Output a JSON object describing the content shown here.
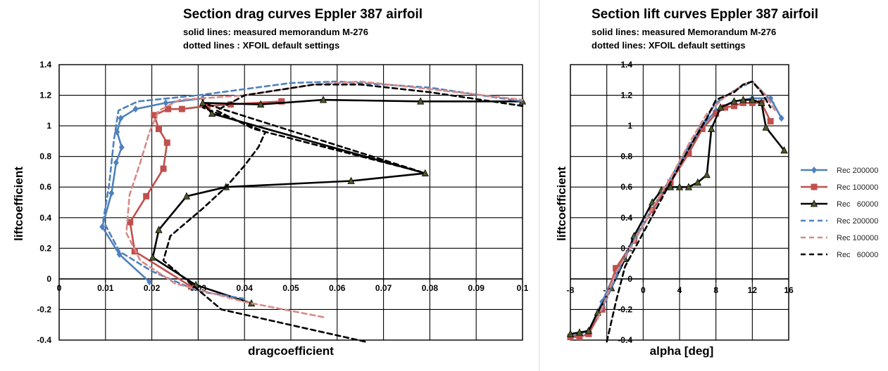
{
  "chart_data": [
    {
      "type": "line",
      "title": "Section drag curves Eppler 387 airfoil",
      "subtitle_lines": [
        "solid lines: measured memorandum M-276",
        "dotted lines : XFOIL default settings"
      ],
      "xlabel": "dragcoefficient",
      "ylabel": "liftcoefficient",
      "xlim": [
        0,
        0.1
      ],
      "ylim": [
        -0.4,
        1.4
      ],
      "xticks": [
        "0",
        "0.01",
        "0.02",
        "0.03",
        "0.04",
        "0.05",
        "0.06",
        "0.07",
        "0.08",
        "0.09",
        "0.1"
      ],
      "yticks": [
        "-0.4",
        "-0.2",
        "0",
        "0.2",
        "0.4",
        "0.6",
        "0.8",
        "1",
        "1.2",
        "1.4"
      ],
      "grid": true,
      "series": [
        {
          "name": "Rec 200000",
          "style": "solid",
          "color": "#4f81bd",
          "marker": "diamond",
          "points": [
            [
              0.0195,
              -0.02
            ],
            [
              0.013,
              0.16
            ],
            [
              0.0093,
              0.34
            ],
            [
              0.0113,
              0.56
            ],
            [
              0.0123,
              0.76
            ],
            [
              0.0135,
              0.86
            ],
            [
              0.0125,
              0.96
            ],
            [
              0.0133,
              1.05
            ],
            [
              0.0165,
              1.11
            ],
            [
              0.023,
              1.15
            ],
            [
              0.031,
              1.18
            ]
          ]
        },
        {
          "name": "Rec 100000",
          "style": "solid",
          "color": "#c0504d",
          "marker": "square",
          "points": [
            [
              0.0285,
              -0.05
            ],
            [
              0.0163,
              0.18
            ],
            [
              0.0153,
              0.37
            ],
            [
              0.0188,
              0.54
            ],
            [
              0.0225,
              0.72
            ],
            [
              0.0233,
              0.89
            ],
            [
              0.0215,
              0.98
            ],
            [
              0.0205,
              1.07
            ],
            [
              0.0235,
              1.11
            ],
            [
              0.0265,
              1.11
            ],
            [
              0.032,
              1.13
            ],
            [
              0.037,
              1.14
            ],
            [
              0.048,
              1.16
            ]
          ]
        },
        {
          "name": "Rec   60000",
          "style": "solid",
          "color": "#000000",
          "marker": "triangle",
          "points": [
            [
              0.0415,
              -0.16
            ],
            [
              0.0295,
              -0.04
            ],
            [
              0.0202,
              0.14
            ],
            [
              0.0215,
              0.32
            ],
            [
              0.0275,
              0.54
            ],
            [
              0.036,
              0.6
            ],
            [
              0.063,
              0.64
            ],
            [
              0.079,
              0.69
            ],
            [
              0.033,
              1.08
            ],
            [
              0.031,
              1.15
            ],
            [
              0.0435,
              1.14
            ],
            [
              0.057,
              1.17
            ],
            [
              0.078,
              1.16
            ],
            [
              0.1,
              1.16
            ]
          ]
        },
        {
          "name": "Rec 200000",
          "style": "dashed",
          "color": "#4f81bd",
          "marker": "none",
          "points": [
            [
              0.04,
              -0.13
            ],
            [
              0.03,
              -0.08
            ],
            [
              0.02,
              0.05
            ],
            [
              0.013,
              0.18
            ],
            [
              0.0095,
              0.38
            ],
            [
              0.0108,
              0.62
            ],
            [
              0.0118,
              0.9
            ],
            [
              0.0128,
              1.1
            ],
            [
              0.017,
              1.16
            ],
            [
              0.03,
              1.2
            ],
            [
              0.05,
              1.28
            ],
            [
              0.06,
              1.29
            ],
            [
              0.08,
              1.25
            ],
            [
              0.1,
              1.16
            ]
          ]
        },
        {
          "name": "Rec 100000",
          "style": "dashed",
          "color": "#d98986",
          "marker": "none",
          "points": [
            [
              0.057,
              -0.25
            ],
            [
              0.04,
              -0.15
            ],
            [
              0.025,
              -0.03
            ],
            [
              0.0175,
              0.12
            ],
            [
              0.0145,
              0.3
            ],
            [
              0.0152,
              0.55
            ],
            [
              0.0175,
              0.76
            ],
            [
              0.0195,
              0.96
            ],
            [
              0.0215,
              1.1
            ],
            [
              0.026,
              1.17
            ],
            [
              0.04,
              1.2
            ],
            [
              0.055,
              1.27
            ],
            [
              0.065,
              1.29
            ],
            [
              0.08,
              1.24
            ],
            [
              0.1,
              1.17
            ]
          ]
        },
        {
          "name": "Rec   60000",
          "style": "dashed",
          "color": "#000000",
          "marker": "none",
          "points": [
            [
              0.066,
              -0.41
            ],
            [
              0.035,
              -0.2
            ],
            [
              0.0225,
              0.12
            ],
            [
              0.024,
              0.28
            ],
            [
              0.031,
              0.46
            ],
            [
              0.036,
              0.6
            ],
            [
              0.04,
              0.74
            ],
            [
              0.043,
              0.86
            ],
            [
              0.0445,
              0.96
            ],
            [
              0.031,
              1.12
            ],
            [
              0.032,
              1.14
            ],
            [
              0.078,
              0.7
            ],
            [
              0.042,
              0.98
            ],
            [
              0.034,
              1.1
            ],
            [
              0.04,
              1.2
            ],
            [
              0.055,
              1.27
            ],
            [
              0.065,
              1.27
            ],
            [
              0.08,
              1.22
            ],
            [
              0.1,
              1.13
            ]
          ]
        }
      ]
    },
    {
      "type": "line",
      "title": "Section lift curves Eppler 387 airfoil",
      "subtitle_lines": [
        "solid lines: measured Memorandum M-276",
        "dotted lines: XFOIL default settings"
      ],
      "xlabel": "alpha  [deg]",
      "ylabel": "liftcoefficient",
      "xlim": [
        -8,
        16
      ],
      "ylim": [
        -0.4,
        1.4
      ],
      "xticks": [
        "-8",
        "-4",
        "0",
        "4",
        "8",
        "12",
        "16"
      ],
      "yticks": [
        "-0.4",
        "-0.2",
        "0",
        "0.2",
        "0.4",
        "0.6",
        "0.8",
        "1",
        "1.2",
        "1.4"
      ],
      "grid": true,
      "legend": {
        "position": "right",
        "entries": [
          "Rec 200000",
          "Rec 100000",
          "Rec   60000",
          "Rec 200000",
          "Rec 100000",
          "Rec   60000"
        ]
      },
      "series": [
        {
          "name": "Rec 200000",
          "style": "solid",
          "color": "#4f81bd",
          "marker": "diamond",
          "points": [
            [
              -8,
              -0.38
            ],
            [
              -6,
              -0.34
            ],
            [
              -4.5,
              -0.15
            ],
            [
              -3,
              0.05
            ],
            [
              -1,
              0.25
            ],
            [
              1,
              0.45
            ],
            [
              3,
              0.63
            ],
            [
              5,
              0.85
            ],
            [
              6.5,
              1.0
            ],
            [
              8,
              1.1
            ],
            [
              10,
              1.16
            ],
            [
              12,
              1.18
            ],
            [
              14,
              1.18
            ],
            [
              15.2,
              1.05
            ]
          ]
        },
        {
          "name": "Rec 100000",
          "style": "solid",
          "color": "#c0504d",
          "marker": "square",
          "points": [
            [
              -8,
              -0.38
            ],
            [
              -7,
              -0.38
            ],
            [
              -6,
              -0.36
            ],
            [
              -4.5,
              -0.2
            ],
            [
              -3,
              0.07
            ],
            [
              -1,
              0.25
            ],
            [
              1,
              0.45
            ],
            [
              3,
              0.63
            ],
            [
              5,
              0.82
            ],
            [
              6.5,
              0.98
            ],
            [
              8,
              1.08
            ],
            [
              9,
              1.12
            ],
            [
              10,
              1.13
            ],
            [
              11,
              1.15
            ],
            [
              12,
              1.15
            ],
            [
              13,
              1.15
            ],
            [
              14,
              1.03
            ]
          ]
        },
        {
          "name": "Rec   60000",
          "style": "solid",
          "color": "#000000",
          "marker": "triangle",
          "points": [
            [
              -8,
              -0.36
            ],
            [
              -7,
              -0.35
            ],
            [
              -6,
              -0.34
            ],
            [
              -5,
              -0.22
            ],
            [
              -3.5,
              -0.06
            ],
            [
              -2,
              0.13
            ],
            [
              -1,
              0.28
            ],
            [
              1,
              0.5
            ],
            [
              2,
              0.58
            ],
            [
              3,
              0.6
            ],
            [
              4,
              0.6
            ],
            [
              5,
              0.6
            ],
            [
              6,
              0.63
            ],
            [
              7,
              0.68
            ],
            [
              7.5,
              0.98
            ],
            [
              8.5,
              1.12
            ],
            [
              10,
              1.16
            ],
            [
              11,
              1.17
            ],
            [
              12,
              1.17
            ],
            [
              13,
              1.15
            ],
            [
              13.5,
              0.99
            ],
            [
              15.5,
              0.84
            ]
          ]
        },
        {
          "name": "Rec 200000",
          "style": "dashed",
          "color": "#4f81bd",
          "marker": "none",
          "points": [
            [
              -4.5,
              -0.2
            ],
            [
              -2,
              0.15
            ],
            [
              0,
              0.36
            ],
            [
              2,
              0.56
            ],
            [
              4,
              0.76
            ],
            [
              6,
              0.96
            ],
            [
              8,
              1.15
            ],
            [
              10,
              1.23
            ],
            [
              12,
              1.29
            ],
            [
              13.5,
              1.2
            ],
            [
              14.5,
              1.14
            ]
          ]
        },
        {
          "name": "Rec 100000",
          "style": "dashed",
          "color": "#d98986",
          "marker": "none",
          "points": [
            [
              -5,
              -0.26
            ],
            [
              -3,
              0.04
            ],
            [
              -1,
              0.24
            ],
            [
              1,
              0.46
            ],
            [
              3,
              0.66
            ],
            [
              5,
              0.88
            ],
            [
              7,
              1.08
            ],
            [
              9,
              1.19
            ],
            [
              11,
              1.27
            ],
            [
              12,
              1.29
            ],
            [
              13.5,
              1.2
            ],
            [
              14.5,
              1.1
            ]
          ]
        },
        {
          "name": "Rec   60000",
          "style": "dashed",
          "color": "#000000",
          "marker": "none",
          "points": [
            [
              -4,
              -0.41
            ],
            [
              -3,
              -0.15
            ],
            [
              -2,
              0.08
            ],
            [
              0,
              0.3
            ],
            [
              2,
              0.52
            ],
            [
              4,
              0.74
            ],
            [
              5.5,
              0.9
            ],
            [
              7,
              1.05
            ],
            [
              8,
              1.17
            ],
            [
              10,
              1.22
            ],
            [
              11,
              1.27
            ],
            [
              12,
              1.29
            ],
            [
              13,
              1.22
            ],
            [
              14,
              1.12
            ]
          ]
        }
      ]
    }
  ]
}
